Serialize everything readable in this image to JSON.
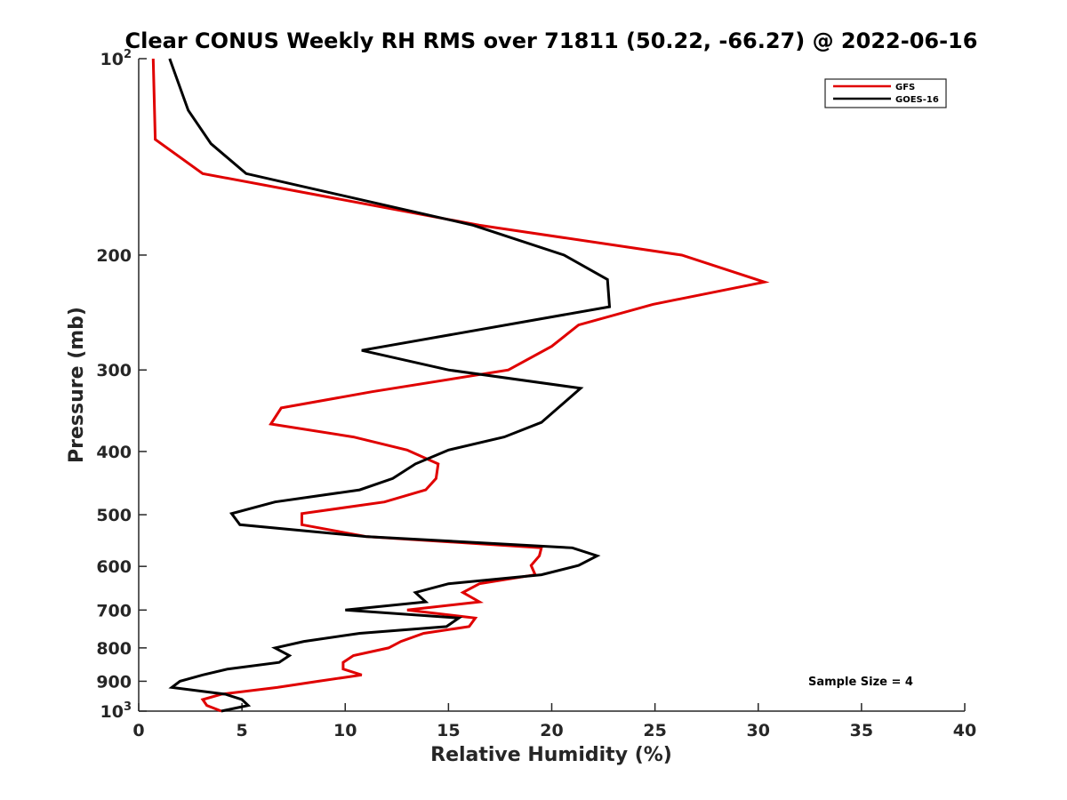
{
  "chart_data": {
    "type": "line",
    "title": "Clear CONUS Weekly RH RMS over 71811 (50.22, -66.27) @ 2022-06-16",
    "xlabel": "Relative Humidity (%)",
    "ylabel": "Pressure (mb)",
    "xlim": [
      0,
      40
    ],
    "ylim": [
      100,
      1000
    ],
    "y_scale": "log",
    "y_reversed": true,
    "x_ticks": [
      0,
      5,
      10,
      15,
      20,
      25,
      30,
      35,
      40
    ],
    "x_tick_labels": [
      "0",
      "5",
      "10",
      "15",
      "20",
      "25",
      "30",
      "35",
      "40"
    ],
    "y_ticks": [
      {
        "value": 100,
        "base": "10",
        "exp": "2"
      },
      {
        "value": 200,
        "text": "200"
      },
      {
        "value": 300,
        "text": "300"
      },
      {
        "value": 400,
        "text": "400"
      },
      {
        "value": 500,
        "text": "500"
      },
      {
        "value": 600,
        "text": "600"
      },
      {
        "value": 700,
        "text": "700"
      },
      {
        "value": 800,
        "text": "800"
      },
      {
        "value": 900,
        "text": "900"
      },
      {
        "value": 1000,
        "base": "10",
        "exp": "3"
      }
    ],
    "grid": false,
    "legend": "top-right",
    "annotation": "Sample Size = 4",
    "series": [
      {
        "name": "GFS",
        "color": "#e00000",
        "points": [
          [
            0.7,
            100
          ],
          [
            0.8,
            133
          ],
          [
            3.1,
            150
          ],
          [
            16.5,
            180
          ],
          [
            26.3,
            200
          ],
          [
            30.3,
            220
          ],
          [
            24.9,
            238
          ],
          [
            21.3,
            256
          ],
          [
            20.0,
            276
          ],
          [
            17.9,
            300
          ],
          [
            11.3,
            324
          ],
          [
            6.9,
            343
          ],
          [
            6.4,
            363
          ],
          [
            10.4,
            380
          ],
          [
            13.0,
            398
          ],
          [
            14.5,
            418
          ],
          [
            14.4,
            440
          ],
          [
            13.9,
            458
          ],
          [
            11.9,
            478
          ],
          [
            7.9,
            498
          ],
          [
            7.9,
            518
          ],
          [
            11.0,
            540
          ],
          [
            19.5,
            562
          ],
          [
            19.4,
            578
          ],
          [
            19.0,
            598
          ],
          [
            19.2,
            618
          ],
          [
            16.5,
            638
          ],
          [
            15.7,
            658
          ],
          [
            16.5,
            680
          ],
          [
            13.0,
            700
          ],
          [
            16.3,
            720
          ],
          [
            16.0,
            742
          ],
          [
            13.8,
            760
          ],
          [
            12.7,
            782
          ],
          [
            12.1,
            800
          ],
          [
            10.4,
            822
          ],
          [
            9.9,
            842
          ],
          [
            9.9,
            862
          ],
          [
            10.8,
            880
          ],
          [
            8.7,
            900
          ],
          [
            6.7,
            920
          ],
          [
            4.0,
            942
          ],
          [
            3.1,
            960
          ],
          [
            3.3,
            980
          ],
          [
            4.0,
            1000
          ]
        ]
      },
      {
        "name": "GOES-16",
        "color": "#000000",
        "points": [
          [
            1.5,
            100
          ],
          [
            2.4,
            120
          ],
          [
            3.5,
            135
          ],
          [
            5.2,
            150
          ],
          [
            16.2,
            180
          ],
          [
            20.6,
            200
          ],
          [
            22.7,
            218
          ],
          [
            22.8,
            240
          ],
          [
            10.8,
            280
          ],
          [
            15.0,
            300
          ],
          [
            21.4,
            320
          ],
          [
            20.4,
            341
          ],
          [
            19.5,
            361
          ],
          [
            17.7,
            380
          ],
          [
            15.0,
            398
          ],
          [
            13.4,
            418
          ],
          [
            12.3,
            440
          ],
          [
            10.7,
            458
          ],
          [
            6.6,
            478
          ],
          [
            4.5,
            498
          ],
          [
            4.9,
            518
          ],
          [
            11.0,
            540
          ],
          [
            21.0,
            562
          ],
          [
            22.2,
            578
          ],
          [
            21.3,
            598
          ],
          [
            19.5,
            618
          ],
          [
            15.0,
            638
          ],
          [
            13.4,
            658
          ],
          [
            13.9,
            680
          ],
          [
            10.0,
            700
          ],
          [
            15.5,
            720
          ],
          [
            14.9,
            742
          ],
          [
            10.7,
            760
          ],
          [
            8.0,
            782
          ],
          [
            6.6,
            800
          ],
          [
            7.3,
            822
          ],
          [
            6.8,
            842
          ],
          [
            4.3,
            862
          ],
          [
            3.1,
            880
          ],
          [
            2.0,
            900
          ],
          [
            1.6,
            920
          ],
          [
            4.2,
            942
          ],
          [
            5.0,
            960
          ],
          [
            5.3,
            980
          ],
          [
            4.0,
            1000
          ]
        ]
      }
    ]
  }
}
